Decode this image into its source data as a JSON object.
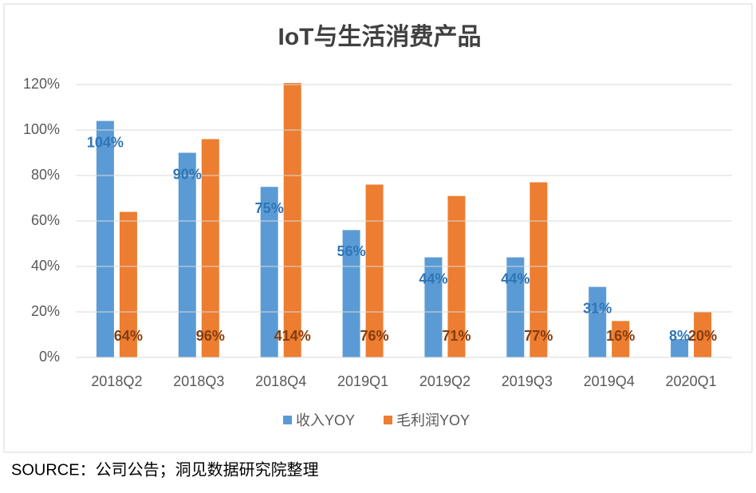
{
  "chart_data": {
    "type": "bar",
    "title": "IoT与生活消费产品",
    "categories": [
      "2018Q2",
      "2018Q3",
      "2018Q4",
      "2019Q1",
      "2019Q2",
      "2019Q3",
      "2019Q4",
      "2020Q1"
    ],
    "series": [
      {
        "name": "收入YOY",
        "color": "#5b9bd5",
        "label_color": "#2e75b6",
        "values": [
          104,
          90,
          75,
          56,
          44,
          44,
          31,
          8
        ],
        "value_labels": [
          "104%",
          "90%",
          "75%",
          "56%",
          "44%",
          "44%",
          "31%",
          "8%"
        ]
      },
      {
        "name": "毛利润YOY",
        "color": "#ed7d31",
        "label_color": "#843c0c",
        "values": [
          64,
          96,
          414,
          76,
          71,
          77,
          16,
          20
        ],
        "value_labels": [
          "64%",
          "96%",
          "414%",
          "76%",
          "71%",
          "77%",
          "16%",
          "20%"
        ]
      }
    ],
    "ylim": [
      0,
      120
    ],
    "yticks": [
      {
        "value": 0,
        "label": "0%"
      },
      {
        "value": 20,
        "label": "20%"
      },
      {
        "value": 40,
        "label": "40%"
      },
      {
        "value": 60,
        "label": "60%"
      },
      {
        "value": 80,
        "label": "80%"
      },
      {
        "value": 100,
        "label": "100%"
      },
      {
        "value": 120,
        "label": "120%"
      }
    ],
    "grid": true,
    "legend": "bottom",
    "source": "SOURCE：公司公告；洞见数据研究院整理"
  }
}
